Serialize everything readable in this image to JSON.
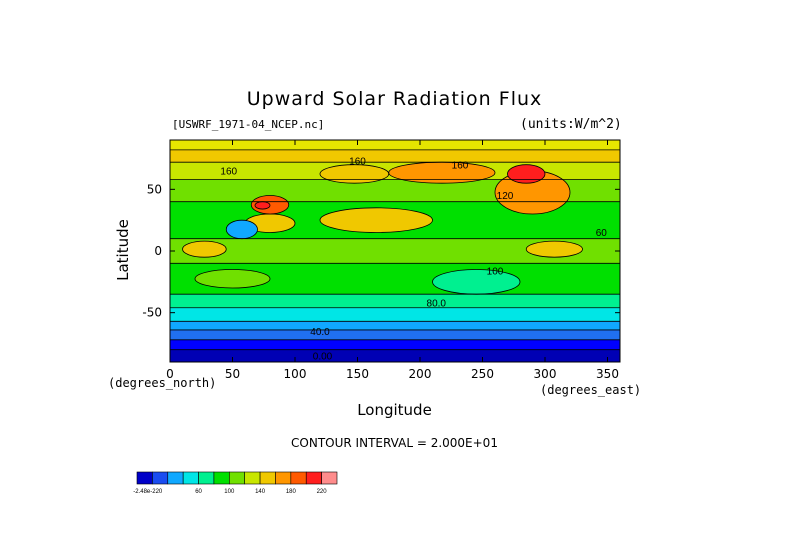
{
  "chart_data": {
    "type": "heatmap",
    "title": "Upward Solar Radiation Flux",
    "source": "[USWRF_1971-04_NCEP.nc]",
    "units_label": "(units:W/m^2)",
    "xlabel": "Longitude",
    "ylabel": "Latitude",
    "x_units": "(degrees_east)",
    "y_units": "(degrees_north)",
    "xlim": [
      0,
      360
    ],
    "ylim": [
      -90,
      90
    ],
    "x_ticks": [
      "0",
      "50",
      "100",
      "150",
      "200",
      "250",
      "300",
      "350"
    ],
    "y_ticks": [
      "50",
      "0",
      "-50"
    ],
    "contour_interval_text": "CONTOUR INTERVAL = 2.000E+01",
    "contour_labels": [
      "160",
      "160",
      "160",
      "120",
      "80.0",
      "40.0",
      "0.00",
      "100",
      "60"
    ],
    "colorbar": {
      "tick_labels": [
        "-2.48e-220",
        "60",
        "100",
        "140",
        "180",
        "220"
      ],
      "colors": [
        "#0000c8",
        "#1a4cf0",
        "#10a8ff",
        "#00e6e6",
        "#00f090",
        "#00e000",
        "#70e000",
        "#c8e600",
        "#f0c800",
        "#ff9600",
        "#ff5a00",
        "#ff1e1e",
        "#ff8c8c"
      ]
    },
    "zonal_bands": [
      {
        "lat": [
          -90,
          -80
        ],
        "color": "#0000b4"
      },
      {
        "lat": [
          -80,
          -72
        ],
        "color": "#0000ff"
      },
      {
        "lat": [
          -72,
          -64
        ],
        "color": "#2070f0"
      },
      {
        "lat": [
          -64,
          -57
        ],
        "color": "#10a8ff"
      },
      {
        "lat": [
          -57,
          -46
        ],
        "color": "#00e6e6"
      },
      {
        "lat": [
          -46,
          -35
        ],
        "color": "#00f090"
      },
      {
        "lat": [
          -35,
          -10
        ],
        "color": "#00e000"
      },
      {
        "lat": [
          -10,
          10
        ],
        "color": "#70e000"
      },
      {
        "lat": [
          10,
          40
        ],
        "color": "#00e000"
      },
      {
        "lat": [
          40,
          58
        ],
        "color": "#70e000"
      },
      {
        "lat": [
          58,
          72
        ],
        "color": "#c8e600"
      },
      {
        "lat": [
          72,
          82
        ],
        "color": "#f0c800"
      },
      {
        "lat": [
          82,
          90
        ],
        "color": "#e6e600"
      }
    ],
    "patches": [
      {
        "lon": [
          10,
          45
        ],
        "lat": [
          -5,
          8
        ],
        "color": "#f0c800"
      },
      {
        "lon": [
          60,
          100
        ],
        "lat": [
          15,
          30
        ],
        "color": "#f0c800"
      },
      {
        "lon": [
          120,
          210
        ],
        "lat": [
          15,
          35
        ],
        "color": "#f0c800"
      },
      {
        "lon": [
          285,
          330
        ],
        "lat": [
          -5,
          8
        ],
        "color": "#f0c800"
      },
      {
        "lon": [
          120,
          175
        ],
        "lat": [
          55,
          70
        ],
        "color": "#f0c800"
      },
      {
        "lon": [
          175,
          260
        ],
        "lat": [
          55,
          72
        ],
        "color": "#ff9600"
      },
      {
        "lon": [
          260,
          320
        ],
        "lat": [
          30,
          65
        ],
        "color": "#ff9600"
      },
      {
        "lon": [
          270,
          300
        ],
        "lat": [
          55,
          70
        ],
        "color": "#ff1e1e"
      },
      {
        "lon": [
          65,
          95
        ],
        "lat": [
          30,
          45
        ],
        "color": "#ff5a00"
      },
      {
        "lon": [
          68,
          80
        ],
        "lat": [
          34,
          40
        ],
        "color": "#ff1e1e"
      },
      {
        "lon": [
          45,
          70
        ],
        "lat": [
          10,
          25
        ],
        "color": "#10a8ff"
      },
      {
        "lon": [
          210,
          280
        ],
        "lat": [
          -35,
          -15
        ],
        "color": "#00f090"
      },
      {
        "lon": [
          20,
          80
        ],
        "lat": [
          -30,
          -15
        ],
        "color": "#70e000"
      }
    ]
  }
}
